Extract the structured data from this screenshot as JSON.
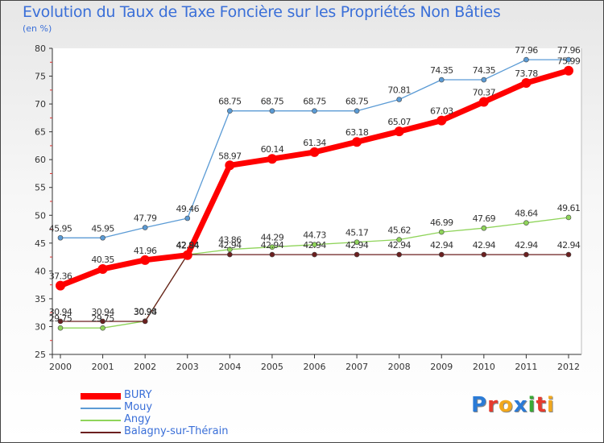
{
  "title": "Evolution du Taux de Taxe Foncière sur les Propriétés Non Bâties",
  "subtitle": "(en %)",
  "logo": {
    "letters": [
      {
        "ch": "P",
        "color": "#2b7bd6"
      },
      {
        "ch": "r",
        "color": "#e63b2e"
      },
      {
        "ch": "o",
        "color": "#f2a81d"
      },
      {
        "ch": "x",
        "color": "#2b7bd6"
      },
      {
        "ch": "i",
        "color": "#3aaa35"
      },
      {
        "ch": "t",
        "color": "#e63b2e"
      },
      {
        "ch": "i",
        "color": "#f2a81d"
      }
    ]
  },
  "chart_data": {
    "type": "line",
    "x": [
      "2000",
      "2001",
      "2002",
      "2003",
      "2004",
      "2005",
      "2006",
      "2007",
      "2008",
      "2009",
      "2010",
      "2011",
      "2012"
    ],
    "ylim": [
      25,
      80
    ],
    "yticks": [
      25,
      30,
      35,
      40,
      45,
      50,
      55,
      60,
      65,
      70,
      75,
      80
    ],
    "grid": false,
    "legend_position": "bottom-left",
    "series": [
      {
        "name": "BURY",
        "color": "#ff0000",
        "values": [
          37.36,
          40.35,
          41.96,
          42.84,
          58.97,
          60.14,
          61.34,
          63.18,
          65.07,
          67.03,
          70.37,
          73.78,
          75.99
        ],
        "labels": [
          "37.36",
          "40.35",
          "41.96",
          "42.84",
          "58.97",
          "60.14",
          "61.34",
          "63.18",
          "65.07",
          "67.03",
          "70.37",
          "73.78",
          "75.99"
        ]
      },
      {
        "name": "Mouy",
        "color": "#5b9bd5",
        "values": [
          45.95,
          45.95,
          47.79,
          49.46,
          68.75,
          68.75,
          68.75,
          68.75,
          70.81,
          74.35,
          74.35,
          77.96,
          77.96
        ],
        "labels": [
          "45.95",
          "45.95",
          "47.79",
          "49.46",
          "68.75",
          "68.75",
          "68.75",
          "68.75",
          "70.81",
          "74.35",
          "74.35",
          "77.96",
          "77.96"
        ]
      },
      {
        "name": "Angy",
        "color": "#8fd45a",
        "values": [
          29.75,
          29.75,
          30.98,
          42.94,
          43.86,
          44.29,
          44.73,
          45.17,
          45.62,
          46.99,
          47.69,
          48.64,
          49.61
        ],
        "labels": [
          "29.75",
          "29.75",
          "30.98",
          "42.94",
          "43.86",
          "44.29",
          "44.73",
          "45.17",
          "45.62",
          "46.99",
          "47.69",
          "48.64",
          "49.61"
        ]
      },
      {
        "name": "Balagny-sur-Thérain",
        "color": "#6b1f1f",
        "values": [
          30.94,
          30.94,
          30.94,
          42.94,
          42.94,
          42.94,
          42.94,
          42.94,
          42.94,
          42.94,
          42.94,
          42.94,
          42.94
        ],
        "labels": [
          "30.94",
          "30.94",
          "30.94",
          "42.94",
          "42.94",
          "42.94",
          "42.94",
          "42.94",
          "42.94",
          "42.94",
          "42.94",
          "42.94",
          "42.94"
        ]
      }
    ]
  }
}
